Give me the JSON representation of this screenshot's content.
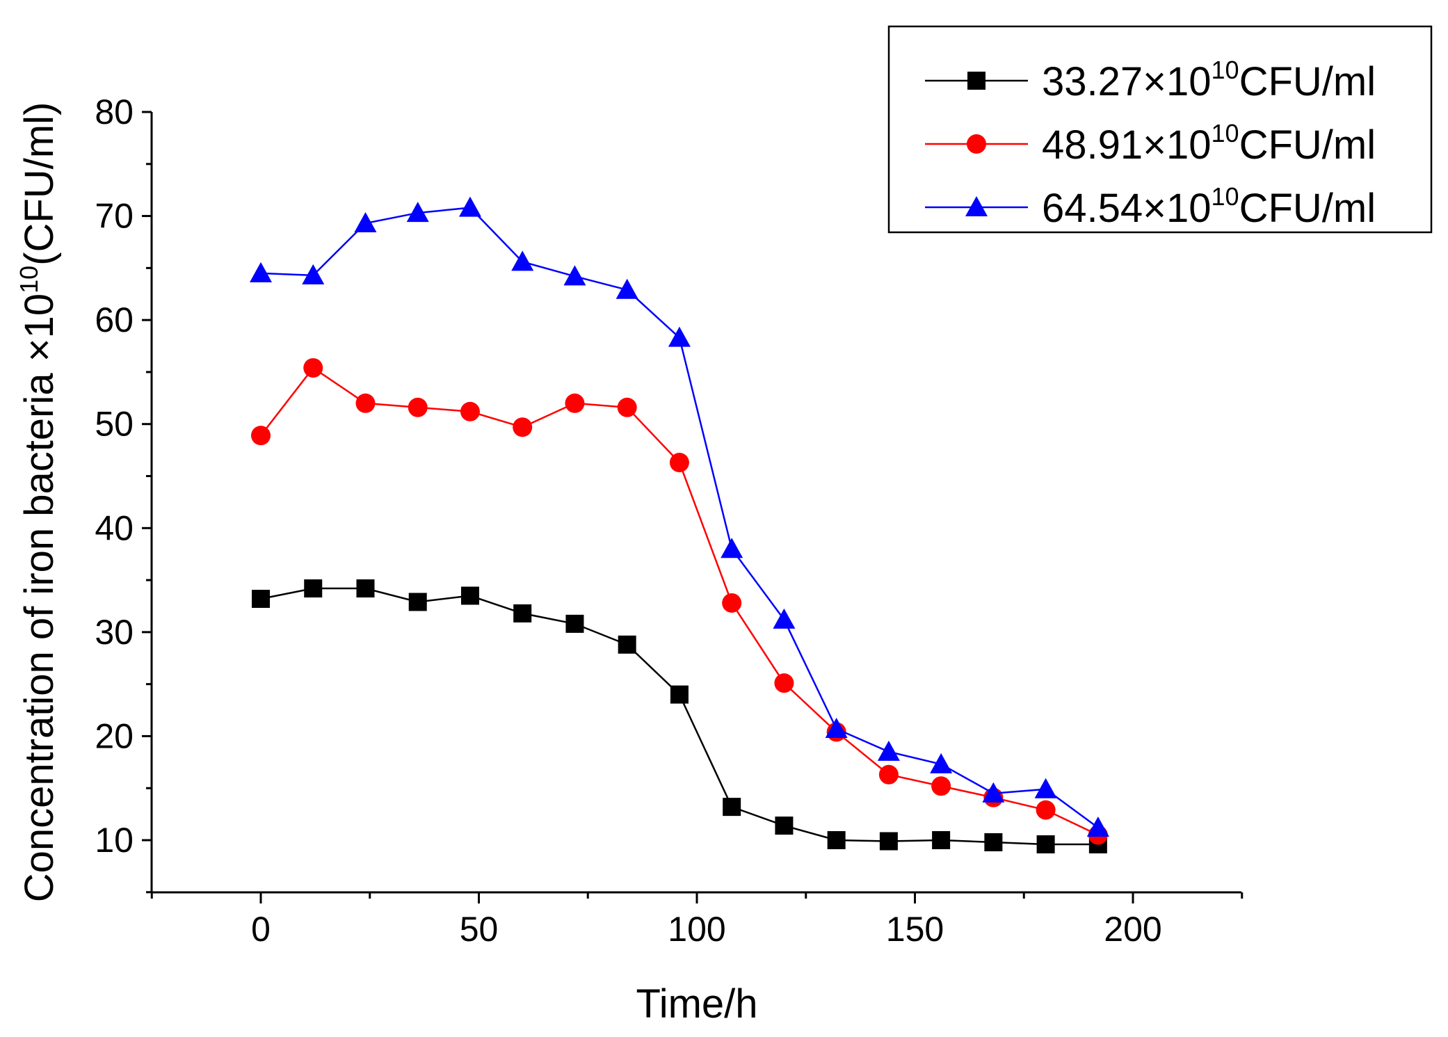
{
  "chart_data": {
    "type": "line",
    "xlabel": "Time/h",
    "ylabel": {
      "prefix": "Concentration of iron bacteria ×10",
      "sup": "10",
      "suffix": "(CFU/ml)"
    },
    "xlim": [
      -25,
      225
    ],
    "ylim": [
      5,
      80
    ],
    "xticks": [
      0,
      50,
      100,
      150,
      200
    ],
    "yticks": [
      10,
      20,
      30,
      40,
      50,
      60,
      70,
      80
    ],
    "legend_position": "top-right",
    "x": [
      0,
      12,
      24,
      36,
      48,
      60,
      72,
      84,
      96,
      108,
      120,
      132,
      144,
      156,
      168,
      180,
      192
    ],
    "series": [
      {
        "name": "33.27×10^10CFU/ml",
        "label": {
          "base": "33.27×10",
          "sup": "10",
          "unit": "CFU/ml"
        },
        "color": "#000000",
        "marker": "square",
        "values": [
          33.2,
          34.2,
          34.2,
          32.9,
          33.5,
          31.8,
          30.8,
          28.8,
          24.0,
          13.2,
          11.4,
          10.0,
          9.9,
          10.0,
          9.8,
          9.6,
          9.6
        ]
      },
      {
        "name": "48.91×10^10CFU/ml",
        "label": {
          "base": "48.91×10",
          "sup": "10",
          "unit": "CFU/ml"
        },
        "color": "#ff0000",
        "marker": "circle",
        "values": [
          48.9,
          55.4,
          52.0,
          51.6,
          51.2,
          49.7,
          52.0,
          51.6,
          46.3,
          32.8,
          25.1,
          20.4,
          16.3,
          15.2,
          14.1,
          12.9,
          10.5
        ]
      },
      {
        "name": "64.54×10^10CFU/ml",
        "label": {
          "base": "64.54×10",
          "sup": "10",
          "unit": "CFU/ml"
        },
        "color": "#0000ff",
        "marker": "triangle",
        "values": [
          64.5,
          64.3,
          69.3,
          70.3,
          70.8,
          65.6,
          64.2,
          62.9,
          58.3,
          38.0,
          31.2,
          20.7,
          18.5,
          17.3,
          14.5,
          14.9,
          11.2
        ]
      }
    ]
  }
}
